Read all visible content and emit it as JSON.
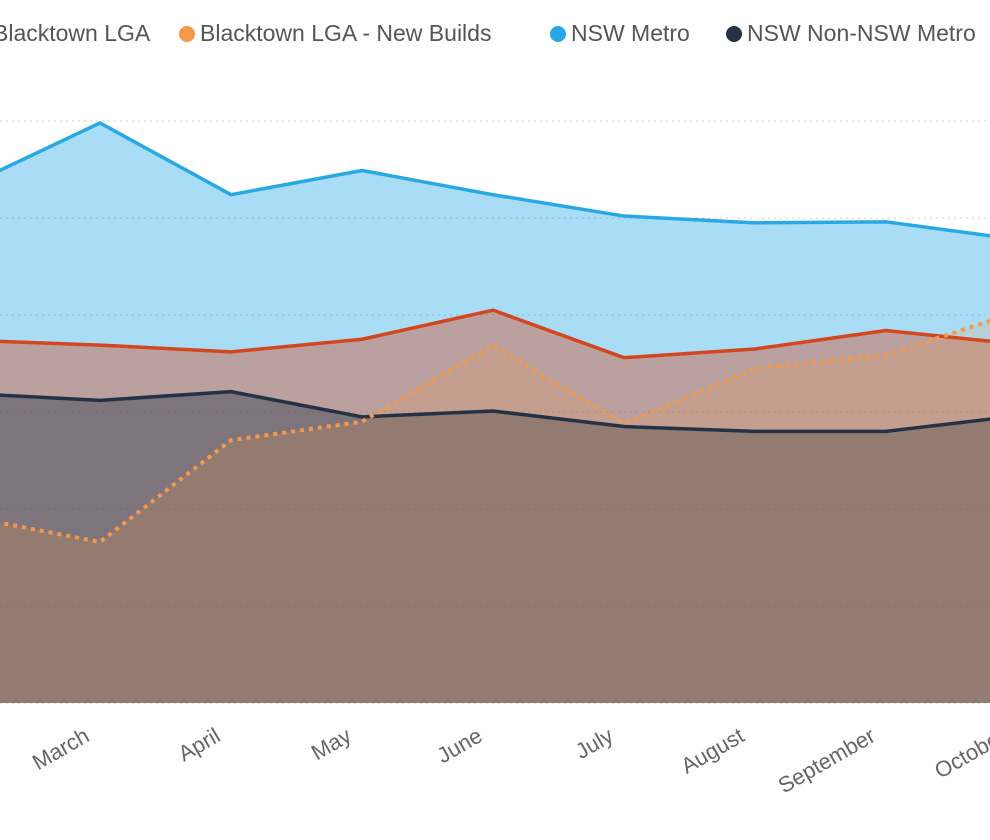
{
  "chart_data": {
    "type": "area",
    "categories": [
      null,
      "March",
      "April",
      "May",
      "June",
      "July",
      "August",
      "September",
      "October"
    ],
    "series": [
      {
        "name": "Blacktown LGA",
        "color": "#d4461f",
        "values": [
          3.74,
          3.69,
          3.62,
          3.75,
          4.05,
          3.56,
          3.65,
          3.84,
          3.7
        ]
      },
      {
        "name": "Blacktown LGA - New Builds",
        "color": "#f2994a",
        "dashed": true,
        "values": [
          1.92,
          1.66,
          2.71,
          2.9,
          3.69,
          2.88,
          3.45,
          3.59,
          4.03
        ]
      },
      {
        "name": "NSW Metro",
        "color": "#29a8e6",
        "values": [
          5.34,
          5.98,
          5.24,
          5.49,
          5.24,
          5.02,
          4.95,
          4.96,
          4.78
        ]
      },
      {
        "name": "NSW Non-NSW Metro",
        "color": "#253246",
        "values": [
          3.19,
          3.12,
          3.21,
          2.95,
          3.01,
          2.85,
          2.8,
          2.8,
          2.96
        ]
      }
    ],
    "ylim": [
      0,
      6
    ],
    "yticks": [
      0,
      1,
      2,
      3,
      4,
      5,
      6
    ],
    "grid": true
  }
}
